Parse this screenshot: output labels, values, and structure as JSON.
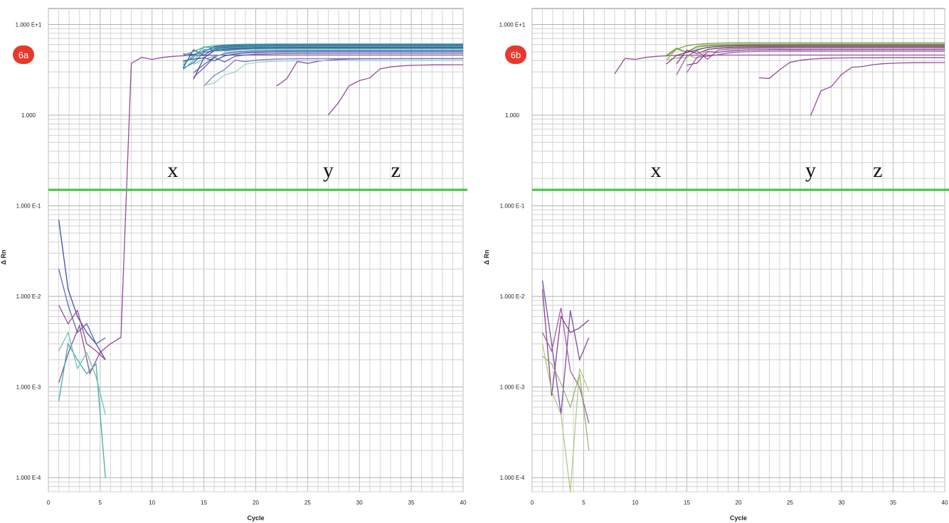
{
  "chart_data": [
    {
      "type": "line",
      "panel_label": "6a",
      "xlabel": "Cycle",
      "ylabel": "Δ Rn",
      "y_scale": "log",
      "xlim": [
        0,
        40
      ],
      "ylim": [
        7e-05,
        15
      ],
      "x_ticks": [
        "0",
        "5",
        "10",
        "15",
        "20",
        "25",
        "30",
        "35",
        "40"
      ],
      "y_ticks": [
        {
          "value": 10,
          "label": "1.000 E+1"
        },
        {
          "value": 1,
          "label": "1.000"
        },
        {
          "value": 0.1,
          "label": "1.000 E-1"
        },
        {
          "value": 0.01,
          "label": "1.000 E-2"
        },
        {
          "value": 0.001,
          "label": "1.000 E-3"
        },
        {
          "value": 0.0001,
          "label": "1.000 E-4"
        }
      ],
      "grid": true,
      "threshold": 0.15,
      "annotations": [
        {
          "text": "x",
          "x": 12,
          "y": 0.25
        },
        {
          "text": "y",
          "x": 27,
          "y": 0.25
        },
        {
          "text": "z",
          "x": 33.5,
          "y": 0.25
        }
      ],
      "series": [
        {
          "color": "#8b3a8f",
          "kind": "amp",
          "ct": 12.0,
          "plateau": 4.6,
          "start": 8,
          "noise_start": 1
        },
        {
          "color": "#8b3a8f",
          "kind": "amp",
          "ct": 27.0,
          "plateau": 4.2,
          "start": 22
        },
        {
          "color": "#8b3a8f",
          "kind": "amp",
          "ct": 33.5,
          "plateau": 3.6,
          "start": 27
        },
        {
          "color": "#2e3a9e",
          "kind": "amp",
          "ct": 17.3,
          "plateau": 6.0,
          "start": 12.5
        },
        {
          "color": "#2e3a9e",
          "kind": "amp",
          "ct": 17.6,
          "plateau": 5.8,
          "start": 12.8
        },
        {
          "color": "#3b2f8f",
          "kind": "amp",
          "ct": 17.9,
          "plateau": 5.6,
          "start": 13
        },
        {
          "color": "#5a4fb0",
          "kind": "amp",
          "ct": 18.2,
          "plateau": 5.5,
          "start": 13
        },
        {
          "color": "#5a4fb0",
          "kind": "amp",
          "ct": 18.6,
          "plateau": 5.2,
          "start": 13.5
        },
        {
          "color": "#2e3a9e",
          "kind": "amp",
          "ct": 19.0,
          "plateau": 5.0,
          "start": 13.5
        },
        {
          "color": "#4b56b8",
          "kind": "amp",
          "ct": 19.4,
          "plateau": 4.8,
          "start": 14
        },
        {
          "color": "#6a6bc0",
          "kind": "amp",
          "ct": 20.2,
          "plateau": 4.2,
          "start": 15
        },
        {
          "color": "#2ea79a",
          "kind": "amp",
          "ct": 17.0,
          "plateau": 6.1,
          "start": 12.2
        },
        {
          "color": "#2ea79a",
          "kind": "amp",
          "ct": 17.4,
          "plateau": 5.9,
          "start": 12.5
        },
        {
          "color": "#36b8a8",
          "kind": "amp",
          "ct": 17.8,
          "plateau": 5.7,
          "start": 12.8
        },
        {
          "color": "#2ea79a",
          "kind": "amp",
          "ct": 18.1,
          "plateau": 5.4,
          "start": 13
        },
        {
          "color": "#5fbfa9",
          "kind": "amp",
          "ct": 18.5,
          "plateau": 5.1,
          "start": 13.3
        },
        {
          "color": "#8fcfc0",
          "kind": "amp",
          "ct": 20.5,
          "plateau": 4.0,
          "start": 15
        },
        {
          "color": "#2e3a9e",
          "kind": "noise",
          "values": [
            0.07,
            0.012,
            0.006,
            0.004,
            0.003,
            0.002
          ]
        },
        {
          "color": "#4b56b8",
          "kind": "noise",
          "values": [
            0.02,
            0.008,
            0.004,
            0.005,
            0.003,
            0.0035
          ]
        },
        {
          "color": "#8b3a8f",
          "kind": "noise",
          "values": [
            0.008,
            0.005,
            0.007,
            0.003,
            0.0025,
            0.002
          ]
        },
        {
          "color": "#2ea79a",
          "kind": "noise",
          "values": [
            0.0007,
            0.003,
            0.002,
            0.0014,
            0.0018,
            0.0001
          ]
        },
        {
          "color": "#5fbfa9",
          "kind": "noise",
          "values": [
            0.0025,
            0.004,
            0.0016,
            0.0024,
            0.0013,
            0.0005
          ]
        }
      ]
    },
    {
      "type": "line",
      "panel_label": "6b",
      "xlabel": "Cycle",
      "ylabel": "Δ Rn",
      "y_scale": "log",
      "xlim": [
        0,
        40
      ],
      "ylim": [
        7e-05,
        15
      ],
      "x_ticks": [
        "0",
        "5",
        "10",
        "15",
        "20",
        "25",
        "30",
        "35",
        "40"
      ],
      "y_ticks": [
        {
          "value": 10,
          "label": "1.000 E+1"
        },
        {
          "value": 1,
          "label": "1.000"
        },
        {
          "value": 0.1,
          "label": "1.000 E-1"
        },
        {
          "value": 0.01,
          "label": "1.000 E-2"
        },
        {
          "value": 0.001,
          "label": "1.000 E-3"
        },
        {
          "value": 0.0001,
          "label": "1.000 E-4"
        }
      ],
      "grid": true,
      "threshold": 0.15,
      "annotations": [
        {
          "text": "x",
          "x": 12,
          "y": 0.25
        },
        {
          "text": "y",
          "x": 27,
          "y": 0.25
        },
        {
          "text": "z",
          "x": 33.5,
          "y": 0.25
        }
      ],
      "series": [
        {
          "color": "#8b3a8f",
          "kind": "amp",
          "ct": 12.0,
          "plateau": 4.6,
          "start": 8
        },
        {
          "color": "#8b3a8f",
          "kind": "amp",
          "ct": 27.0,
          "plateau": 4.3,
          "start": 22
        },
        {
          "color": "#8b3a8f",
          "kind": "amp",
          "ct": 33.5,
          "plateau": 3.8,
          "start": 27
        },
        {
          "color": "#6f9a3a",
          "kind": "amp",
          "ct": 16.9,
          "plateau": 6.3,
          "start": 12.2
        },
        {
          "color": "#8fb35a",
          "kind": "amp",
          "ct": 17.2,
          "plateau": 6.1,
          "start": 12.5
        },
        {
          "color": "#6f9a3a",
          "kind": "amp",
          "ct": 17.5,
          "plateau": 6.0,
          "start": 12.8
        },
        {
          "color": "#a8c47a",
          "kind": "amp",
          "ct": 17.8,
          "plateau": 5.8,
          "start": 13
        },
        {
          "color": "#8fb35a",
          "kind": "amp",
          "ct": 18.1,
          "plateau": 5.6,
          "start": 13.2
        },
        {
          "color": "#7a2f86",
          "kind": "amp",
          "ct": 18.3,
          "plateau": 5.9,
          "start": 13
        },
        {
          "color": "#7a2f86",
          "kind": "amp",
          "ct": 18.7,
          "plateau": 5.7,
          "start": 13.5
        },
        {
          "color": "#9b4aa0",
          "kind": "amp",
          "ct": 19.1,
          "plateau": 5.5,
          "start": 14
        },
        {
          "color": "#7a2f86",
          "kind": "amp",
          "ct": 19.5,
          "plateau": 5.3,
          "start": 14.5
        },
        {
          "color": "#9b4aa0",
          "kind": "amp",
          "ct": 19.9,
          "plateau": 5.1,
          "start": 15
        },
        {
          "color": "#7a2f86",
          "kind": "noise",
          "values": [
            0.012,
            0.0008,
            0.006,
            0.004,
            0.0045,
            0.0055
          ]
        },
        {
          "color": "#6a3fa0",
          "kind": "noise",
          "values": [
            0.015,
            0.003,
            0.0005,
            0.007,
            0.002,
            0.0035
          ]
        },
        {
          "color": "#9b4aa0",
          "kind": "noise",
          "values": [
            0.004,
            0.0025,
            0.0075,
            0.0015,
            0.001,
            0.0004
          ]
        },
        {
          "color": "#8fb35a",
          "kind": "noise",
          "values": [
            0.0022,
            0.0018,
            0.0011,
            0.0006,
            0.0014,
            0.0002
          ]
        },
        {
          "color": "#a8c47a",
          "kind": "noise",
          "values": [
            0.003,
            0.0009,
            0.0005,
            7e-05,
            0.0016,
            0.0009
          ]
        }
      ]
    }
  ]
}
